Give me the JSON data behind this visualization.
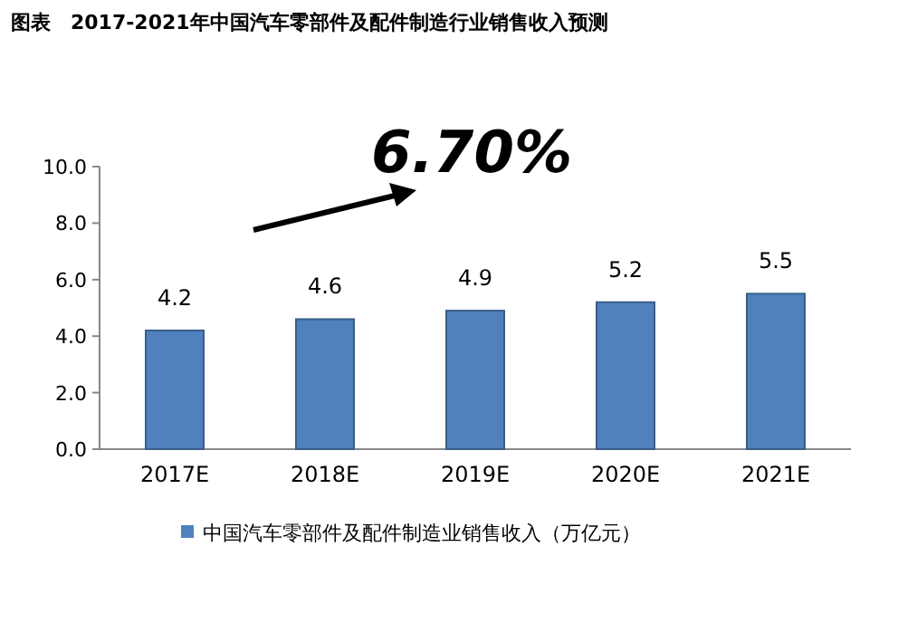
{
  "chart_data": {
    "type": "bar",
    "title": "图表　2017-2021年中国汽车零部件及配件制造行业销售收入预测",
    "categories": [
      "2017E",
      "2018E",
      "2019E",
      "2020E",
      "2021E"
    ],
    "series": [
      {
        "name": "中国汽车零部件及配件制造业销售收入（万亿元）",
        "color": "#4f81bd",
        "values": [
          4.2,
          4.6,
          4.9,
          5.2,
          5.5
        ]
      }
    ],
    "ylim": [
      0,
      10
    ],
    "yticks": [
      {
        "value": 0,
        "label": "0.0"
      },
      {
        "value": 2,
        "label": "2.0"
      },
      {
        "value": 4,
        "label": "4.0"
      },
      {
        "value": 6,
        "label": "6.0"
      },
      {
        "value": 8,
        "label": "8.0"
      },
      {
        "value": 10,
        "label": "10.0"
      }
    ],
    "data_labels": true,
    "legend": "bottom",
    "annotations": [
      "6.70%"
    ]
  }
}
